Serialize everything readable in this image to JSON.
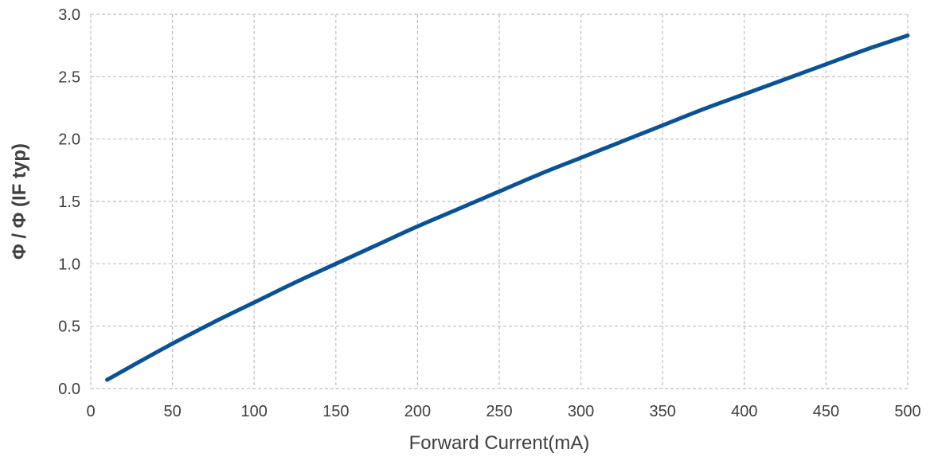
{
  "chart_data": {
    "type": "line",
    "title": "",
    "xlabel": "Forward Current(mA)",
    "ylabel": "Φ / Φ (IF typ)",
    "xlim": [
      0,
      500
    ],
    "ylim": [
      0,
      3.0
    ],
    "xticks": [
      "0",
      "50",
      "100",
      "150",
      "200",
      "250",
      "300",
      "350",
      "400",
      "450",
      "500"
    ],
    "yticks": [
      "0.0",
      "0.5",
      "1.0",
      "1.5",
      "2.0",
      "2.5",
      "3.0"
    ],
    "grid": true,
    "series": [
      {
        "color": "#0a5296",
        "x": [
          10,
          25,
          50,
          75,
          100,
          125,
          150,
          175,
          200,
          225,
          250,
          275,
          300,
          325,
          350,
          375,
          400,
          425,
          450,
          475,
          500
        ],
        "y": [
          0.07,
          0.18,
          0.36,
          0.53,
          0.69,
          0.85,
          1.0,
          1.15,
          1.3,
          1.44,
          1.58,
          1.72,
          1.85,
          1.98,
          2.11,
          2.24,
          2.36,
          2.48,
          2.6,
          2.72,
          2.83
        ]
      }
    ]
  }
}
